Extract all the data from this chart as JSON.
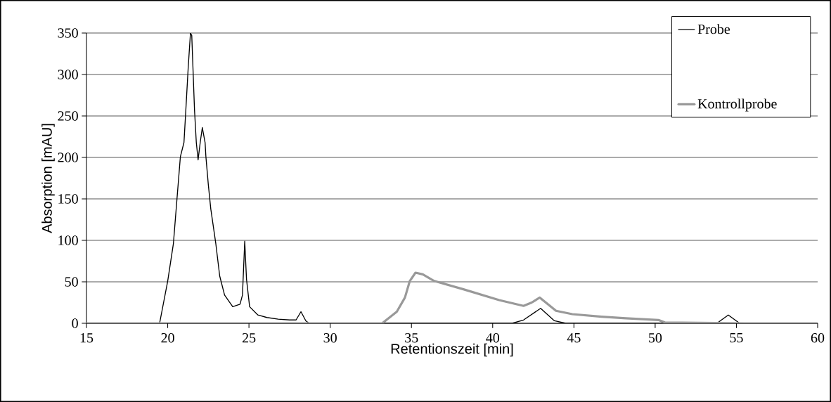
{
  "chart_data": {
    "type": "line",
    "xlabel": "Retentionszeit [min]",
    "ylabel": "Absorption [mAU]",
    "xlim": [
      15,
      60
    ],
    "ylim": [
      0,
      350
    ],
    "xticks": [
      15,
      20,
      25,
      30,
      35,
      40,
      45,
      50,
      55,
      60
    ],
    "yticks": [
      0,
      50,
      100,
      150,
      200,
      250,
      300,
      350
    ],
    "grid": "y",
    "legend": "top right",
    "series": [
      {
        "name": "Probe",
        "color": "#000000",
        "x": [
          15,
          19.5,
          20.0,
          20.35,
          20.57,
          20.78,
          21.0,
          21.1,
          21.26,
          21.4,
          21.48,
          21.65,
          21.76,
          21.87,
          22.0,
          22.13,
          22.3,
          22.35,
          22.5,
          22.65,
          22.96,
          23.2,
          23.5,
          24.0,
          24.45,
          24.6,
          24.74,
          24.85,
          25.04,
          25.55,
          26.1,
          26.8,
          27.5,
          27.9,
          28.2,
          28.5,
          28.7,
          41.2,
          41.9,
          42.95,
          43.8,
          44.5,
          53.8,
          54.5,
          55.2,
          60
        ],
        "values": [
          0,
          0,
          51,
          96,
          150,
          201,
          218,
          252,
          308,
          350,
          347,
          257,
          218,
          197,
          218,
          236,
          218,
          201,
          167,
          138,
          96,
          57,
          34,
          20,
          23,
          34,
          99,
          53,
          20,
          10,
          7,
          5,
          4,
          4,
          14,
          3,
          0,
          0,
          4,
          18,
          3,
          0,
          0,
          10,
          0,
          0
        ]
      },
      {
        "name": "Kontrollprobe",
        "color": "#999999",
        "x": [
          15,
          33.2,
          34.1,
          34.6,
          34.9,
          35.25,
          35.7,
          36.4,
          38.2,
          40.4,
          41.9,
          42.4,
          42.9,
          43.4,
          43.9,
          44.9,
          46.7,
          48.2,
          50.2,
          50.6,
          55.5,
          60
        ],
        "values": [
          0,
          0,
          14,
          31,
          51,
          61,
          59,
          51,
          41,
          28,
          21,
          25,
          31,
          23,
          15,
          11,
          8,
          6,
          4,
          1,
          0,
          0
        ]
      }
    ]
  }
}
